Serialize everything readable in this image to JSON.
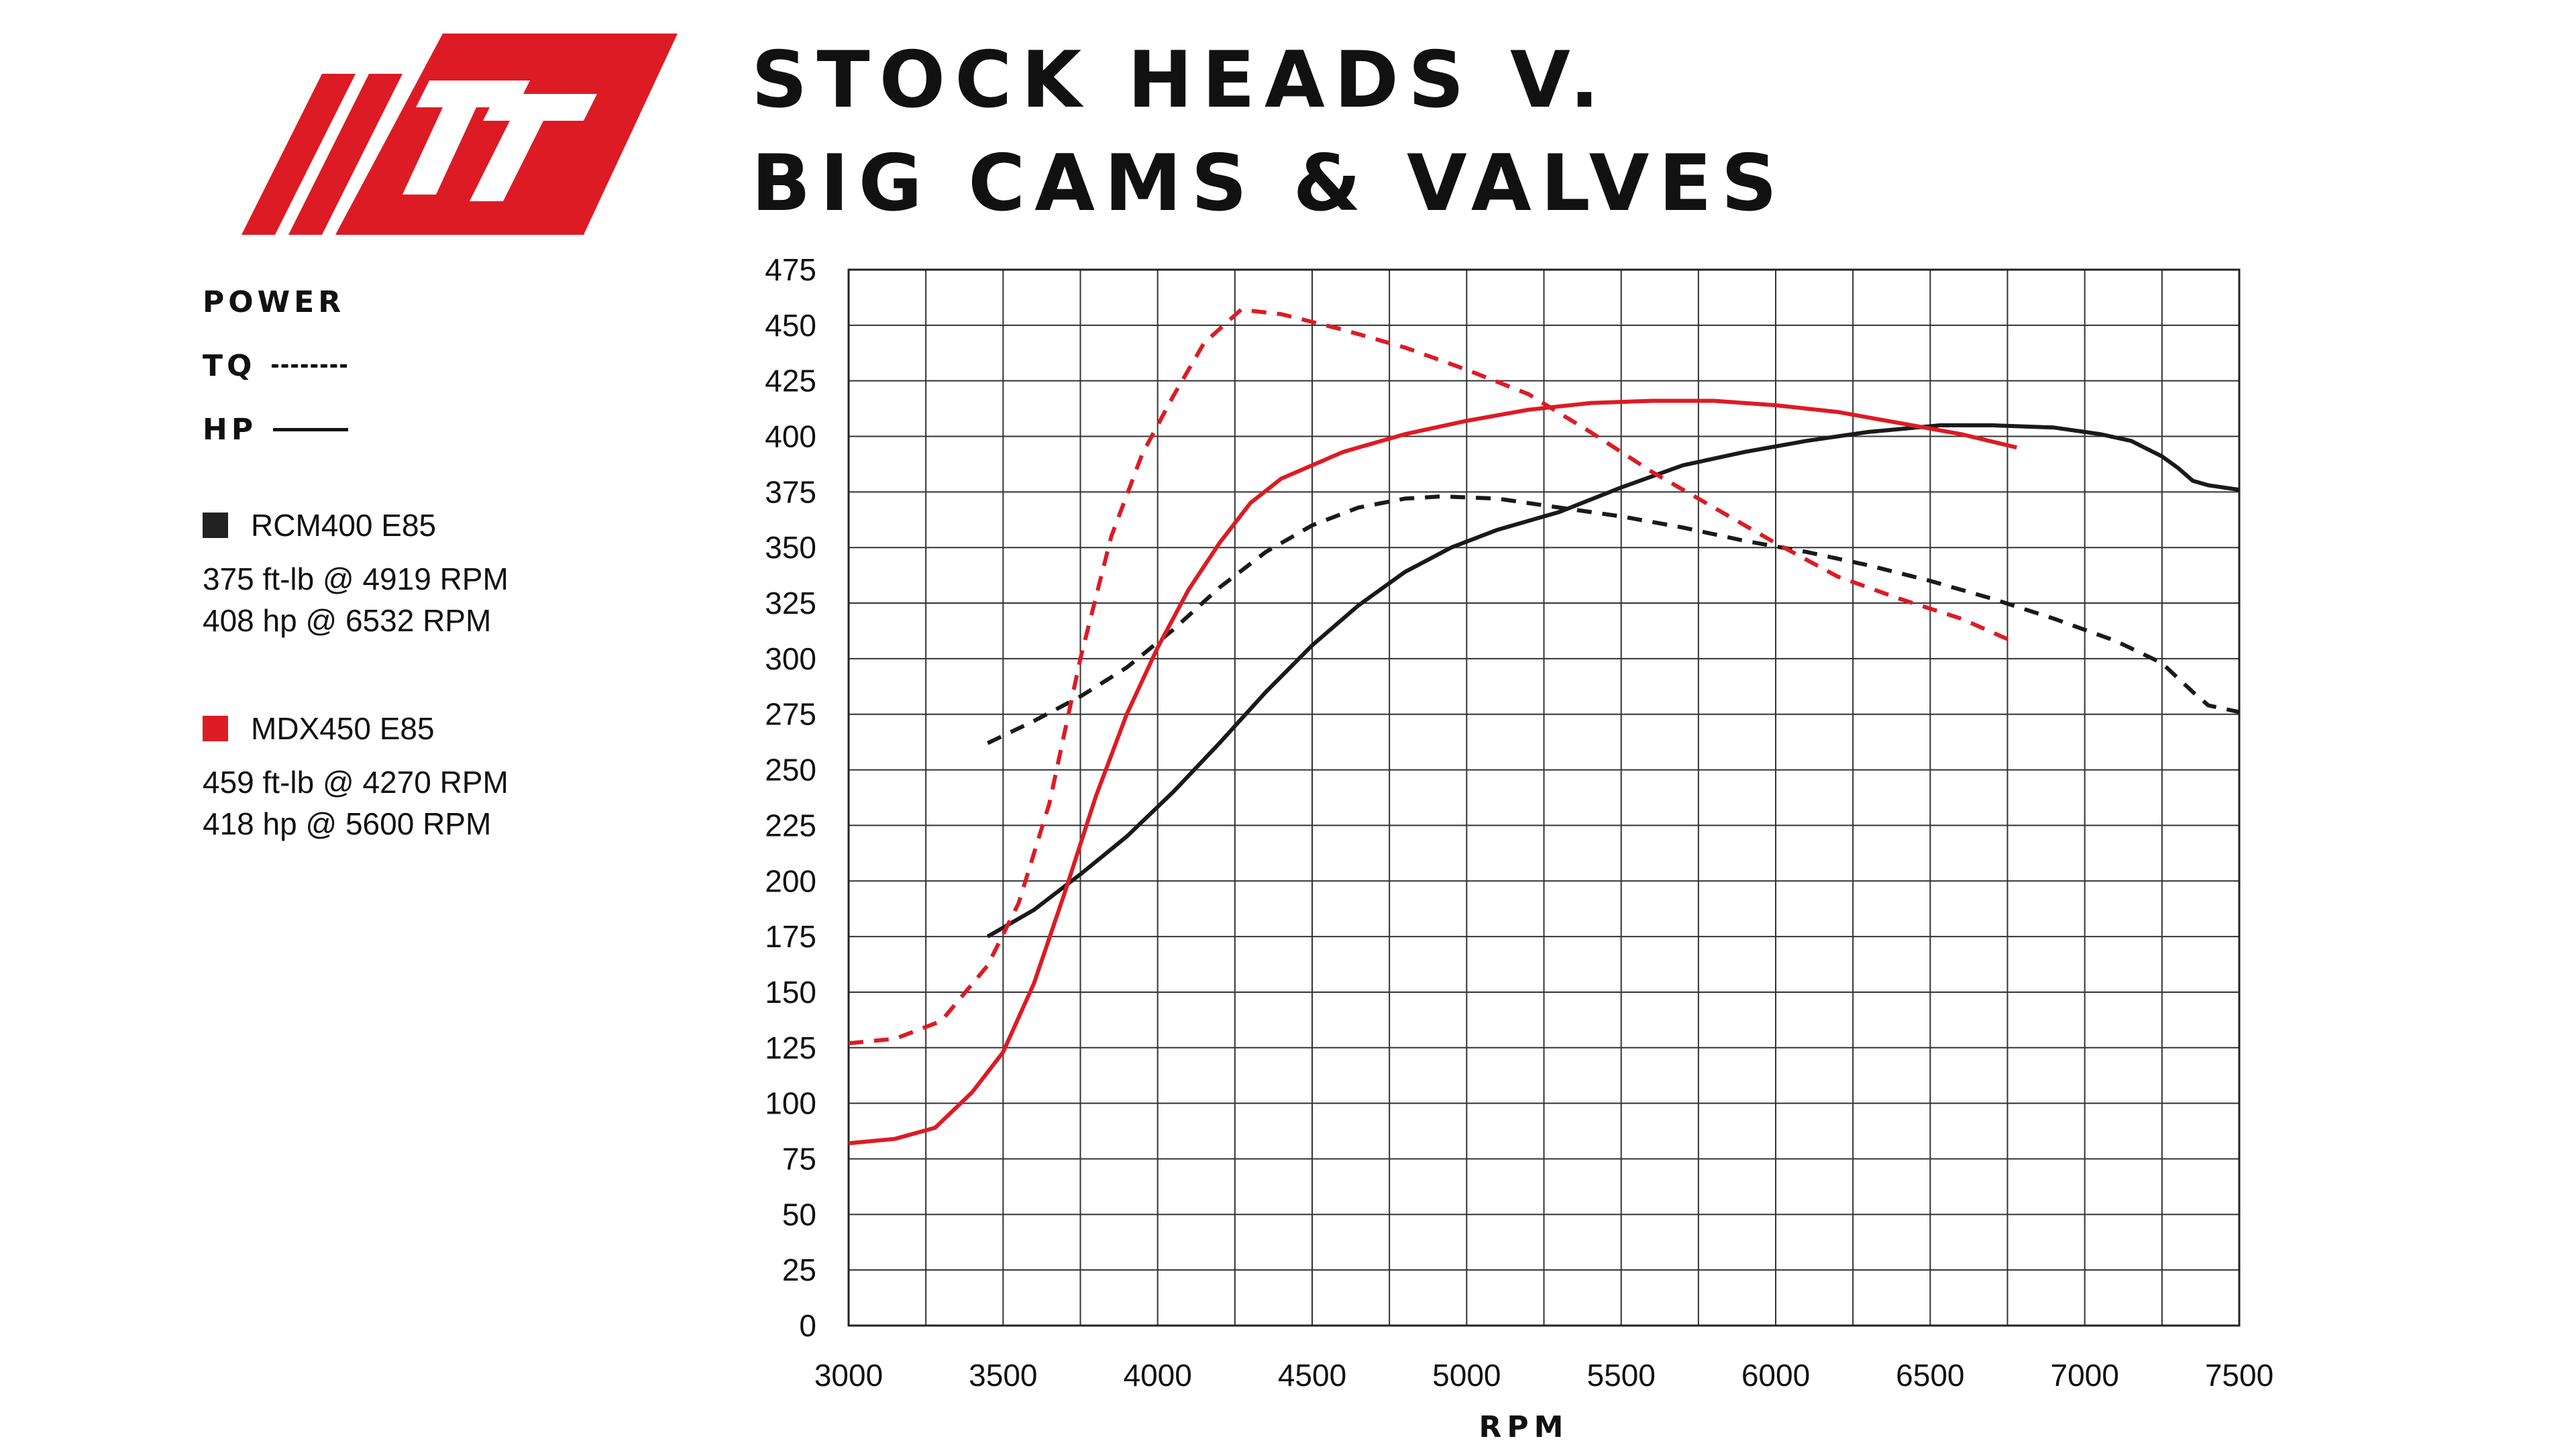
{
  "brand": {
    "logo_text": "FT",
    "logo_color": "#dd1b24"
  },
  "title": {
    "line1": "STOCK HEADS V.",
    "line2": "BIG CAMS & VALVES"
  },
  "legend": {
    "power_label": "POWER",
    "tq_label": "TQ",
    "hp_label": "HP",
    "series": [
      {
        "name": "RCM400 E85",
        "color": "#222222",
        "detail1": "375 ft-lb @ 4919 RPM",
        "detail2": "408 hp @ 6532 RPM"
      },
      {
        "name": "MDX450 E85",
        "color": "#dd1b24",
        "detail1": "459 ft-lb @ 4270 RPM",
        "detail2": "418 hp @ 5600 RPM"
      }
    ]
  },
  "chart_data": {
    "type": "line",
    "title": "STOCK HEADS V. BIG CAMS & VALVES",
    "xlabel": "RPM",
    "ylabel": "",
    "xlim": [
      3000,
      7500
    ],
    "ylim": [
      0,
      475
    ],
    "xticks": [
      3000,
      3500,
      4000,
      4500,
      5000,
      5500,
      6000,
      6500,
      7000,
      7500
    ],
    "yticks": [
      0,
      25,
      50,
      75,
      100,
      125,
      150,
      175,
      200,
      225,
      250,
      275,
      300,
      325,
      350,
      375,
      400,
      425,
      450,
      475
    ],
    "grid": true,
    "legend_position": "left",
    "series": [
      {
        "name": "RCM400 E85",
        "measure": "TQ",
        "color": "#1a1a1a",
        "dashed": true,
        "x": [
          3450,
          3600,
          3750,
          3900,
          4050,
          4200,
          4350,
          4500,
          4650,
          4800,
          4919,
          5100,
          5300,
          5500,
          5700,
          5900,
          6100,
          6300,
          6500,
          6700,
          6900,
          7100,
          7250,
          7350,
          7400,
          7500
        ],
        "y": [
          262,
          272,
          283,
          296,
          313,
          332,
          348,
          360,
          368,
          372,
          373,
          372,
          368,
          364,
          359,
          353,
          348,
          342,
          335,
          327,
          318,
          308,
          298,
          285,
          279,
          276
        ]
      },
      {
        "name": "RCM400 E85",
        "measure": "HP",
        "color": "#1a1a1a",
        "dashed": false,
        "x": [
          3450,
          3600,
          3750,
          3900,
          4050,
          4200,
          4350,
          4500,
          4650,
          4800,
          4950,
          5100,
          5300,
          5500,
          5700,
          5900,
          6100,
          6300,
          6532,
          6700,
          6900,
          7050,
          7150,
          7250,
          7300,
          7350,
          7400,
          7500
        ],
        "y": [
          175,
          187,
          203,
          220,
          240,
          262,
          285,
          306,
          324,
          339,
          350,
          358,
          366,
          377,
          387,
          393,
          398,
          402,
          405,
          405,
          404,
          401,
          398,
          391,
          386,
          380,
          378,
          376
        ]
      },
      {
        "name": "MDX450 E85",
        "measure": "TQ",
        "color": "#dd1b24",
        "dashed": true,
        "x": [
          3000,
          3150,
          3300,
          3450,
          3550,
          3650,
          3750,
          3850,
          3950,
          4050,
          4150,
          4270,
          4400,
          4600,
          4800,
          5000,
          5200,
          5400,
          5600,
          5800,
          6000,
          6200,
          6400,
          6600,
          6780
        ],
        "y": [
          127,
          129,
          137,
          162,
          190,
          235,
          300,
          355,
          392,
          418,
          442,
          457,
          455,
          448,
          440,
          430,
          419,
          402,
          384,
          368,
          352,
          337,
          327,
          318,
          307
        ]
      },
      {
        "name": "MDX450 E85",
        "measure": "HP",
        "color": "#dd1b24",
        "dashed": false,
        "x": [
          3000,
          3150,
          3280,
          3400,
          3500,
          3600,
          3700,
          3800,
          3900,
          4000,
          4100,
          4200,
          4300,
          4400,
          4600,
          4800,
          5000,
          5200,
          5400,
          5600,
          5800,
          6000,
          6200,
          6400,
          6600,
          6780
        ],
        "y": [
          82,
          84,
          89,
          105,
          123,
          154,
          195,
          238,
          275,
          305,
          331,
          352,
          370,
          381,
          393,
          401,
          407,
          412,
          415,
          416,
          416,
          414,
          411,
          406,
          401,
          395
        ]
      }
    ]
  }
}
